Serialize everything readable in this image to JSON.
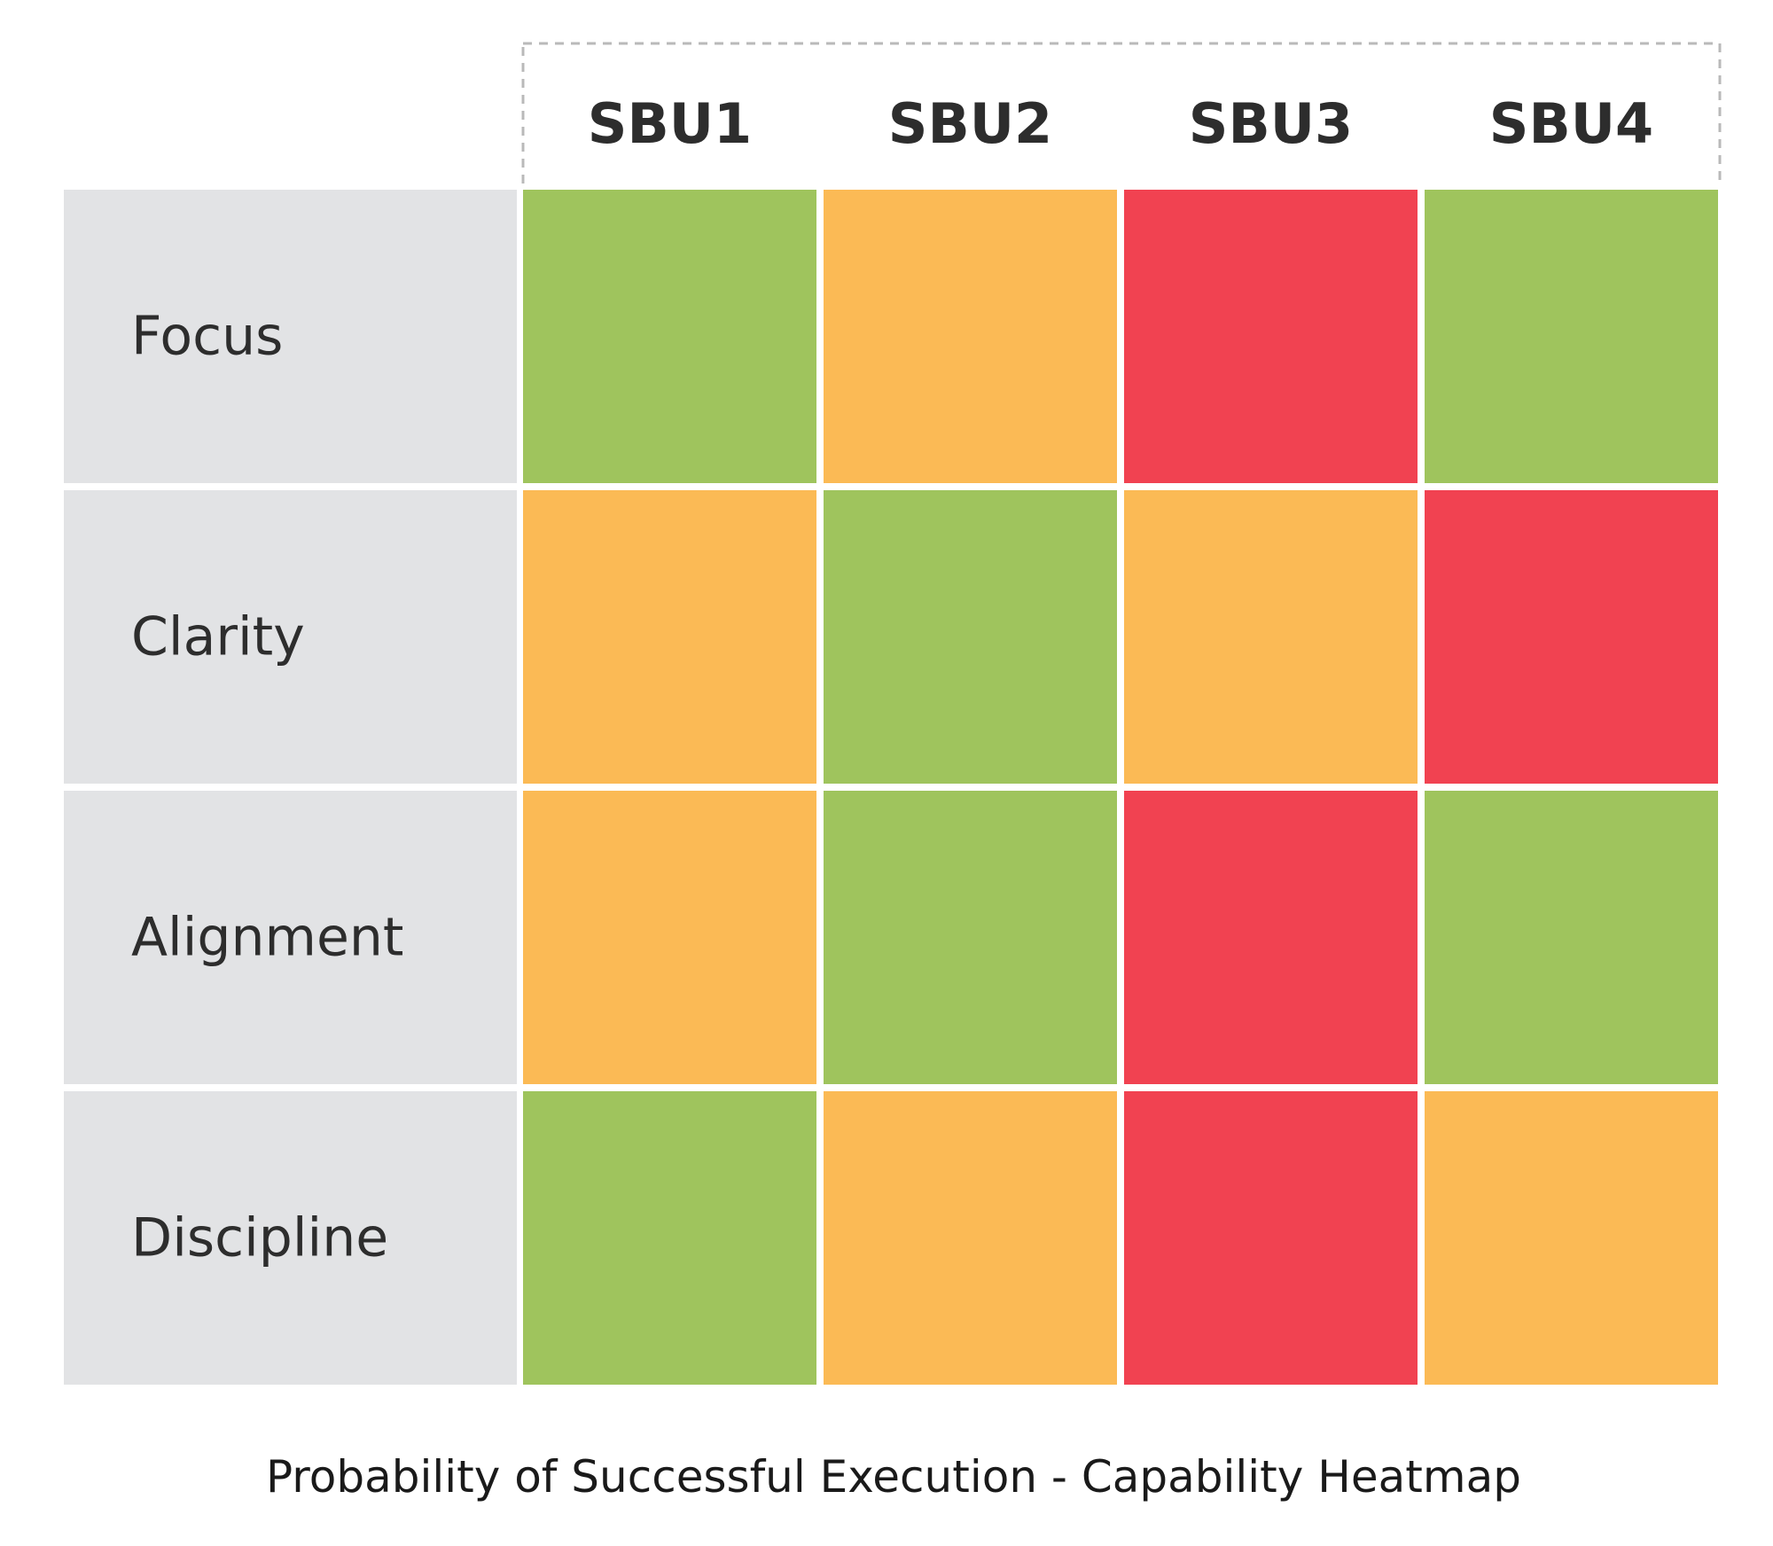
{
  "chart_data": {
    "type": "heatmap",
    "title": "Probability of Successful Execution - Capability Heatmap",
    "columns": [
      "SBU1",
      "SBU2",
      "SBU3",
      "SBU4"
    ],
    "rows": [
      "Focus",
      "Clarity",
      "Alignment",
      "Discipline"
    ],
    "levels": {
      "green": "#9fc45d",
      "amber": "#fbba55",
      "red": "#f14251"
    },
    "row_header_color": "#e2e3e5",
    "cells": [
      [
        "green",
        "amber",
        "red",
        "green"
      ],
      [
        "amber",
        "green",
        "amber",
        "red"
      ],
      [
        "amber",
        "green",
        "red",
        "green"
      ],
      [
        "green",
        "amber",
        "red",
        "amber"
      ]
    ],
    "legend": "none",
    "grid": true
  }
}
